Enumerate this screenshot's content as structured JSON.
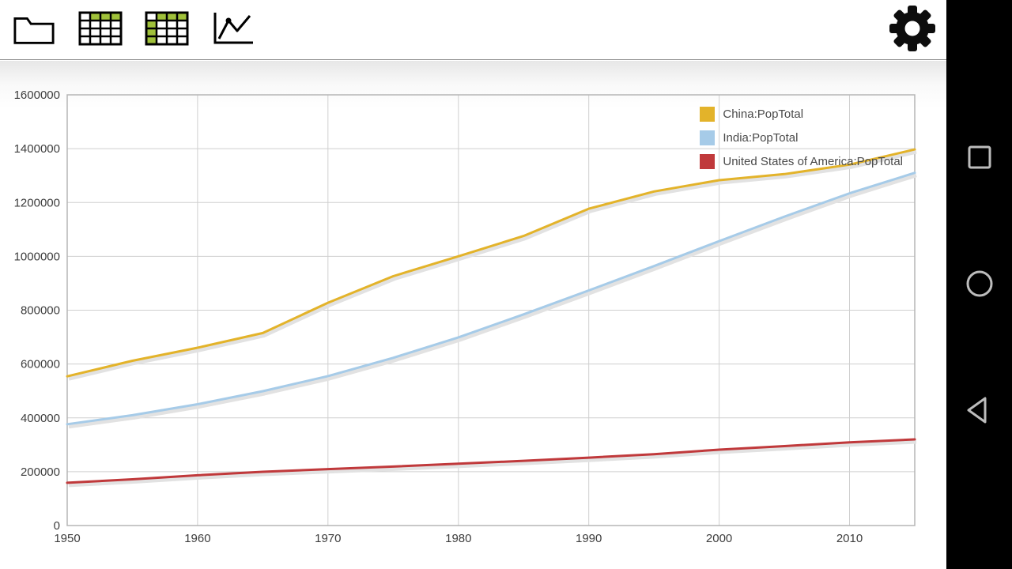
{
  "toolbar": {
    "buttons": [
      {
        "name": "open-file",
        "icon": "folder-icon"
      },
      {
        "name": "data-table",
        "icon": "table-icon"
      },
      {
        "name": "pivot-table",
        "icon": "pivot-table-icon"
      },
      {
        "name": "line-chart-view",
        "icon": "line-chart-icon"
      },
      {
        "name": "settings",
        "icon": "gear-icon"
      }
    ]
  },
  "navbar": {
    "buttons": [
      {
        "name": "recents",
        "icon": "square-icon"
      },
      {
        "name": "home",
        "icon": "circle-icon"
      },
      {
        "name": "back",
        "icon": "triangle-left-icon"
      }
    ]
  },
  "chart_data": {
    "type": "line",
    "x": [
      1950,
      1955,
      1960,
      1965,
      1970,
      1975,
      1980,
      1985,
      1990,
      1995,
      2000,
      2005,
      2010,
      2015
    ],
    "series": [
      {
        "name": "China:PopTotal",
        "color": "#e3b32a",
        "values": [
          554419,
          612241,
          660408,
          715185,
          827601,
          926240,
          1000089,
          1075589,
          1176884,
          1240921,
          1282800,
          1305600,
          1340910,
          1397029
        ]
      },
      {
        "name": "India:PopTotal",
        "color": "#a6cbe8",
        "values": [
          376325,
          409881,
          450548,
          499123,
          555190,
          623103,
          698953,
          784360,
          873278,
          963923,
          1056576,
          1147610,
          1234281,
          1310152
        ]
      },
      {
        "name": "United States of America:PopTotal",
        "color": "#c0393b",
        "values": [
          158804,
          171685,
          186721,
          199734,
          209513,
          219081,
          229476,
          240500,
          252120,
          265164,
          281711,
          294994,
          309011,
          319929
        ]
      }
    ],
    "ylim": [
      0,
      1600000
    ],
    "ytick_step": 200000,
    "xticks": [
      1950,
      1960,
      1970,
      1980,
      1990,
      2000,
      2010
    ],
    "grid": true,
    "legend_position": "top-right",
    "title": "",
    "xlabel": "",
    "ylabel": ""
  }
}
